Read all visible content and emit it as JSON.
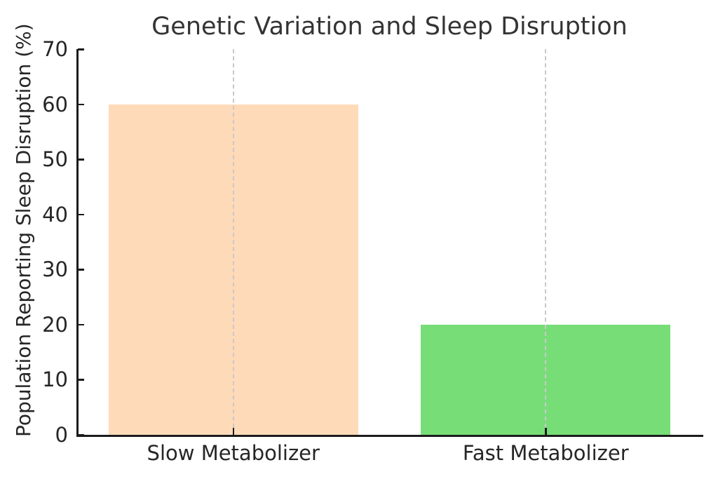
{
  "chart_data": {
    "type": "bar",
    "title": "Genetic Variation and Sleep Disruption",
    "xlabel": "",
    "ylabel": "Population Reporting Sleep Disruption (%)",
    "categories": [
      "Slow Metabolizer",
      "Fast Metabolizer"
    ],
    "values": [
      60,
      20
    ],
    "bar_colors": [
      "#ffdab9",
      "#77dd77"
    ],
    "ylim": [
      0,
      70
    ],
    "yticks": [
      0,
      10,
      20,
      30,
      40,
      50,
      60,
      70
    ],
    "bar_width_fraction": 0.8,
    "grid": {
      "axis": "x",
      "style": "dashed",
      "color": "#c9c9c9",
      "drawn_above_bars": true
    },
    "legend": "none",
    "spines": {
      "left": true,
      "bottom": true,
      "top": false,
      "right": false
    },
    "tick_direction": "in"
  },
  "colors": {
    "spine": "#1c1c1c",
    "grid": "#c9c9c9",
    "text": "#262626",
    "background": "#ffffff"
  }
}
